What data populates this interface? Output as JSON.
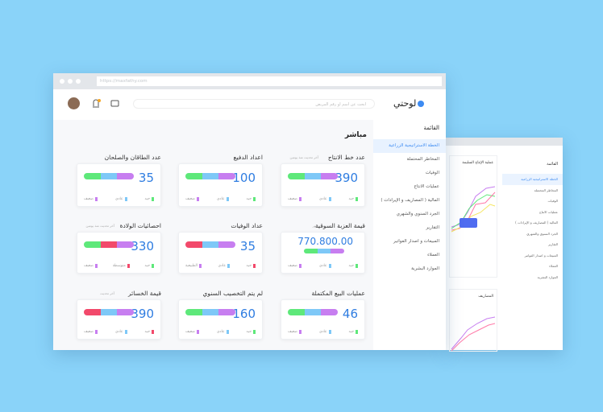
{
  "browser": {
    "url": "https://maxfathy.com"
  },
  "header": {
    "logo": "لوحتي",
    "search_placeholder": "ابحث عن اسم او رقم المريض"
  },
  "sidebar": {
    "title": "القائمة",
    "items": [
      "الخطة الاستراتيجية الزراعية",
      "المخاطر المحتملة",
      "الوفيات",
      "عمليات الانتاج",
      "المالية ( المصاريف و الإيرادات )",
      "الجرد السنوي والشهري",
      "التقارير",
      "المبيعات و اصدار الفواتير",
      "العملاء",
      "الموارد البشرية"
    ],
    "active": 0
  },
  "content": {
    "heading": "مباشر",
    "cards": [
      {
        "title": "عدد خط الانتاج",
        "value": "390",
        "note": "آخر تحديث منذ يومين",
        "segments": [
          "#5ee87a",
          "#7ec8f7",
          "#c77ef0"
        ],
        "legend": [
          "جيد",
          "عادي",
          "ضعيف"
        ]
      },
      {
        "title": "اعداد الدفيع",
        "value": "100",
        "segments": [
          "#5ee87a",
          "#7ec8f7",
          "#c77ef0"
        ],
        "legend": [
          "جيد",
          "عادي",
          "ضعيف"
        ]
      },
      {
        "title": "عدد الطاقان والصلحان",
        "value": "35",
        "segments": [
          "#5ee87a",
          "#7ec8f7",
          "#c77ef0"
        ],
        "legend": [
          "جيد",
          "عادي",
          "ضعيف"
        ]
      },
      {
        "title": "قيمة العزبة السوقية",
        "value": "770.800.00",
        "note": "شهر",
        "segments": [
          "#5ee87a",
          "#7ec8f7",
          "#c77ef0"
        ],
        "legend": [
          "جيد",
          "عادي",
          "ضعيف"
        ]
      },
      {
        "title": "عداد الوفيات",
        "value": "35",
        "segments": [
          "#f2496b",
          "#7ec8f7",
          "#c77ef0"
        ],
        "legend": [
          "جيد",
          "عادي",
          "الطبيعية"
        ]
      },
      {
        "title": "احصائيات الولادة",
        "value": "330",
        "note": "آخر تحديث منذ يومين",
        "segments": [
          "#5ee87a",
          "#f2496b",
          "#c77ef0"
        ],
        "legend": [
          "جيد",
          "متوسطة",
          "ضعيف"
        ]
      },
      {
        "title": "عمليات البيع المكتملة",
        "value": "46",
        "segments": [
          "#5ee87a",
          "#7ec8f7",
          "#c77ef0"
        ],
        "legend": [
          "جيد",
          "عادي",
          "ضعيف"
        ]
      },
      {
        "title": "لم يتم التخصيب السنوي",
        "value": "160",
        "segments": [
          "#5ee87a",
          "#7ec8f7",
          "#c77ef0"
        ],
        "legend": [
          "جيد",
          "عادي",
          "ضعيف"
        ]
      },
      {
        "title": "قيمة الخسائر",
        "value": "390",
        "note": "آخر تحديث",
        "segments": [
          "#f2496b",
          "#7ec8f7",
          "#c77ef0"
        ],
        "legend": [
          "جيد",
          "عادي",
          "ضعيف"
        ]
      }
    ]
  },
  "back_window": {
    "sidebar_title": "القائمة",
    "items": [
      "الخطة الاستراتيجية الزراعية",
      "المخاطر المحتملة",
      "الوفيات",
      "عمليات الانتاج",
      "المالية ( المصاريف و الإيرادات )",
      "الجرد السنوي والشهري",
      "التقارير",
      "المبيعات و اصدار الفواتير",
      "العملاء",
      "الموارد البشرية"
    ],
    "chart_title": "عملية الإنتاج السليمة",
    "chart2_title": "المصاريف"
  }
}
